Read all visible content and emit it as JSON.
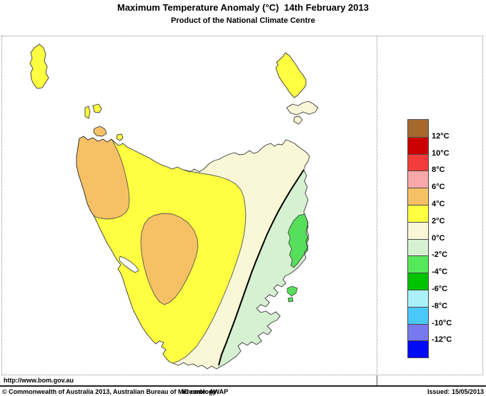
{
  "header": {
    "title": "Maximum Temperature Anomaly (°C)  14th February 2013",
    "subtitle": "Product of the National Climate Centre"
  },
  "legend": {
    "unit": "°C",
    "labels": [
      "12°C",
      "10°C",
      "8°C",
      "6°C",
      "4°C",
      "2°C",
      "0°C",
      "-2°C",
      "-4°C",
      "-6°C",
      "-8°C",
      "-10°C",
      "-12°C"
    ],
    "colors": [
      "#A5692D",
      "#CC0000",
      "#F23C3C",
      "#F8A8A8",
      "#F6C164",
      "#FFFF41",
      "#FAF7D7",
      "#D6F0D2",
      "#55E85A",
      "#00C300",
      "#AAF0FA",
      "#4BC8FA",
      "#7878F0",
      "#000AF5"
    ]
  },
  "map": {
    "colors": {
      "anomaly_plus4_to_plus6": "#F6C164",
      "anomaly_plus2_to_plus4": "#FFFF41",
      "anomaly_0_to_plus2": "#FAF7D7",
      "anomaly_minus2_to_0": "#D6F0D2",
      "anomaly_minus4_to_minus2": "#55DF5A",
      "sea": "#FFFFFF"
    }
  },
  "footer": {
    "url": "http://www.bom.gov.au",
    "copyright": "© Commonwealth of Australia 2013, Australian Bureau of Meteorology",
    "id_code": "ID code: AWAP",
    "issued": "Issued: 15/05/2013"
  }
}
